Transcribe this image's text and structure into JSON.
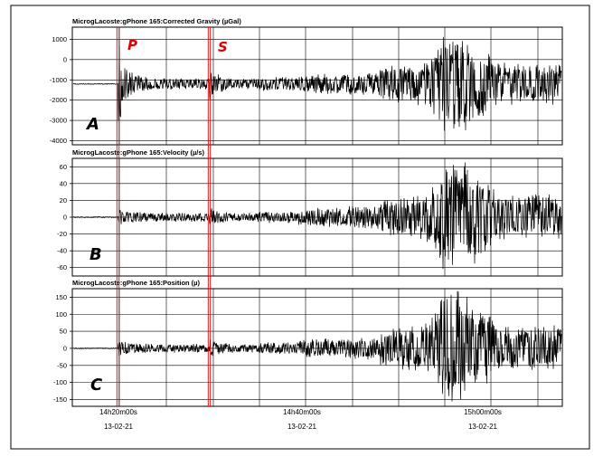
{
  "colors": {
    "trace": "#000000",
    "phase": "#e00000",
    "grid": "#000000",
    "frame": "#000000"
  },
  "chart_data": [
    {
      "type": "line",
      "title": "MicrogLacoste:gPhone 165:Corrected Gravity (µGal)",
      "panel_label": "A",
      "yticks": [
        1000,
        0,
        -1000,
        -2000,
        -3000,
        -4000
      ],
      "ylim": [
        -4200,
        1600
      ],
      "baseline": -1200,
      "grid": true
    },
    {
      "type": "line",
      "title": "MicrogLacoste:gPhone 165:Velocity (µ/s)",
      "panel_label": "B",
      "yticks": [
        60,
        40,
        20,
        0,
        -20,
        -40,
        -60
      ],
      "ylim": [
        -70,
        70
      ],
      "baseline": 0,
      "grid": true
    },
    {
      "type": "line",
      "title": "MicrogLacoste:gPhone 165:Position (µ)",
      "panel_label": "C",
      "yticks": [
        150,
        100,
        50,
        0,
        -50,
        -100,
        -150
      ],
      "ylim": [
        -170,
        175
      ],
      "baseline": 0,
      "grid": true
    }
  ],
  "x_axis": {
    "ticks": [
      {
        "time": "14h20m00s",
        "date": "13-02-21"
      },
      {
        "time": "14h40m00s",
        "date": "13-02-21"
      },
      {
        "time": "15h00m00s",
        "date": "13-02-21"
      }
    ]
  },
  "phases": [
    {
      "label": "P"
    },
    {
      "label": "S"
    }
  ]
}
